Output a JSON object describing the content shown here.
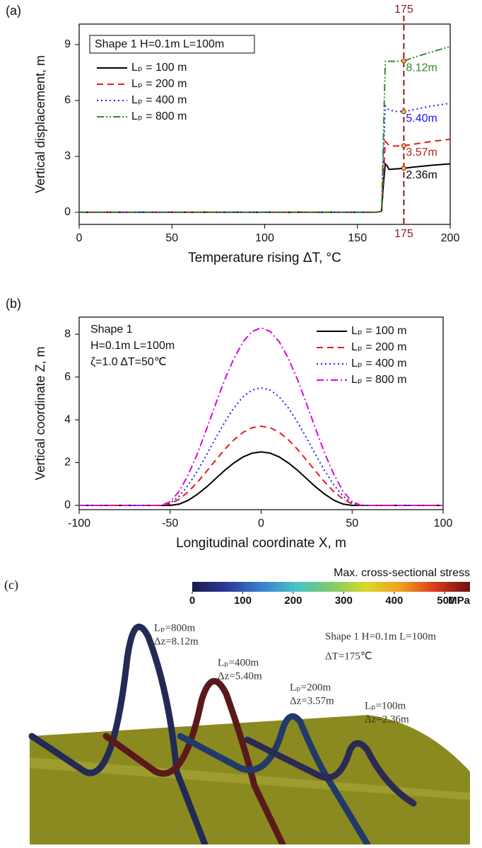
{
  "chart_data": [
    {
      "type": "line",
      "panel": "(a)",
      "xlabel": "Temperature rising ΔT, °C",
      "ylabel": "Vertical displacement, m",
      "xlim": [
        0,
        200
      ],
      "xticks": [
        0,
        50,
        100,
        150,
        200
      ],
      "ylim": [
        -0.65,
        10.1
      ],
      "yticks": [
        0,
        3,
        6,
        9
      ],
      "legend": "upper left",
      "legend_title": "Shape 1 H=0.1m L=100m",
      "x": [
        0,
        160,
        163,
        164,
        165,
        166,
        167,
        170,
        175,
        180,
        190,
        200
      ],
      "series": [
        {
          "name": "Lₚ = 100 m",
          "color": "#000000",
          "style": "solid",
          "values": [
            0,
            0,
            0.05,
            1.5,
            2.6,
            2.5,
            2.3,
            2.32,
            2.36,
            2.42,
            2.52,
            2.6
          ]
        },
        {
          "name": "Lₚ = 200 m",
          "color": "#e8191b",
          "style": "dash",
          "values": [
            0,
            0,
            0.05,
            2,
            3.8,
            3.7,
            3.6,
            3.55,
            3.57,
            3.65,
            3.8,
            3.92
          ]
        },
        {
          "name": "Lₚ = 400 m",
          "color": "#1a1aff",
          "style": "dot",
          "values": [
            0,
            0,
            0.05,
            3,
            5.7,
            5.6,
            5.5,
            5.42,
            5.4,
            5.5,
            5.7,
            5.85
          ]
        },
        {
          "name": "Lₚ = 800 m",
          "color": "#2e8b2e",
          "style": "dashdotdot",
          "values": [
            0,
            0,
            0.05,
            4,
            8.1,
            8.12,
            8.1,
            8.1,
            8.12,
            8.3,
            8.6,
            8.9
          ]
        }
      ],
      "vline": {
        "x": 175,
        "label": "175",
        "color": "#8b1a1a"
      },
      "points": [
        {
          "x": 175,
          "y": 2.36,
          "label": "2.36m",
          "color": "#000000"
        },
        {
          "x": 175,
          "y": 3.57,
          "label": "3.57m",
          "color": "#b22222"
        },
        {
          "x": 175,
          "y": 5.4,
          "label": "5.40m",
          "color": "#1a1aff"
        },
        {
          "x": 175,
          "y": 8.12,
          "label": "8.12m",
          "color": "#2e8b2e"
        }
      ]
    },
    {
      "type": "line",
      "panel": "(b)",
      "xlabel": "Longitudinal coordinate X, m",
      "ylabel": "Vertical coordinate Z, m",
      "xlim": [
        -100,
        100
      ],
      "xticks": [
        -100,
        -50,
        0,
        50,
        100
      ],
      "ylim": [
        -0.2,
        8.8
      ],
      "yticks": [
        0,
        2,
        4,
        6,
        8
      ],
      "legend": "upper right",
      "text_block": [
        "Shape 1",
        "H=0.1m L=100m",
        "ζ=1.0 ΔT=50℃"
      ],
      "x": [
        -100,
        -60,
        -55,
        -50,
        -45,
        -40,
        -35,
        -30,
        -25,
        -20,
        -15,
        -10,
        -5,
        0,
        5,
        10,
        15,
        20,
        25,
        30,
        35,
        40,
        45,
        50,
        55,
        60,
        100
      ],
      "series": [
        {
          "name": "Lₚ = 100 m",
          "color": "#000000",
          "style": "solid",
          "values": [
            0,
            0,
            0,
            0,
            0.06,
            0.24,
            0.52,
            0.86,
            1.25,
            1.64,
            1.98,
            2.26,
            2.44,
            2.5,
            2.44,
            2.26,
            1.98,
            1.64,
            1.25,
            0.86,
            0.52,
            0.24,
            0.06,
            0,
            0,
            0,
            0
          ]
        },
        {
          "name": "Lₚ = 200 m",
          "color": "#e8191b",
          "style": "dash",
          "values": [
            0,
            0,
            0,
            0.07,
            0.29,
            0.64,
            1.08,
            1.59,
            2.11,
            2.62,
            3.06,
            3.41,
            3.63,
            3.7,
            3.63,
            3.41,
            3.06,
            2.62,
            2.11,
            1.59,
            1.08,
            0.64,
            0.29,
            0.07,
            0,
            0,
            0
          ]
        },
        {
          "name": "Lₚ = 400 m",
          "color": "#1a1aff",
          "style": "dot",
          "values": [
            0,
            0,
            0,
            0.11,
            0.43,
            0.95,
            1.61,
            2.36,
            3.14,
            3.89,
            4.55,
            5.07,
            5.39,
            5.5,
            5.39,
            5.07,
            4.55,
            3.89,
            3.14,
            2.36,
            1.61,
            0.95,
            0.43,
            0.11,
            0,
            0,
            0
          ]
        },
        {
          "name": "Lₚ = 800 m",
          "color": "#e000e0",
          "style": "dashdot",
          "values": [
            0,
            0,
            0,
            0.17,
            0.66,
            1.44,
            2.42,
            3.56,
            4.74,
            5.88,
            6.86,
            7.64,
            8.13,
            8.3,
            8.13,
            7.64,
            6.86,
            5.88,
            4.74,
            3.56,
            2.42,
            1.44,
            0.66,
            0.17,
            0,
            0,
            0
          ]
        }
      ]
    },
    {
      "type": "colorbar",
      "panel": "(c)",
      "title": "Max. cross-sectional stress",
      "unit": "MPa",
      "xlim": [
        0,
        550
      ],
      "xticks": [
        0,
        100,
        200,
        300,
        400,
        500
      ],
      "colors": [
        "#1b1b4a",
        "#2a3a9a",
        "#3b7fd0",
        "#49c2c8",
        "#7ecb6a",
        "#d8d82a",
        "#f0a020",
        "#d83a1a",
        "#6a1010"
      ],
      "annotations": [
        "Lₚ=800m",
        "Δz=8.12m",
        "Lₚ=400m",
        "Δz=5.40m",
        "Lₚ=200m",
        "Δz=3.57m",
        "Lₚ=100m",
        "Δz=2.36m",
        "Shape 1   H=0.1m    L=100m",
        "ΔT=175℃"
      ]
    }
  ]
}
